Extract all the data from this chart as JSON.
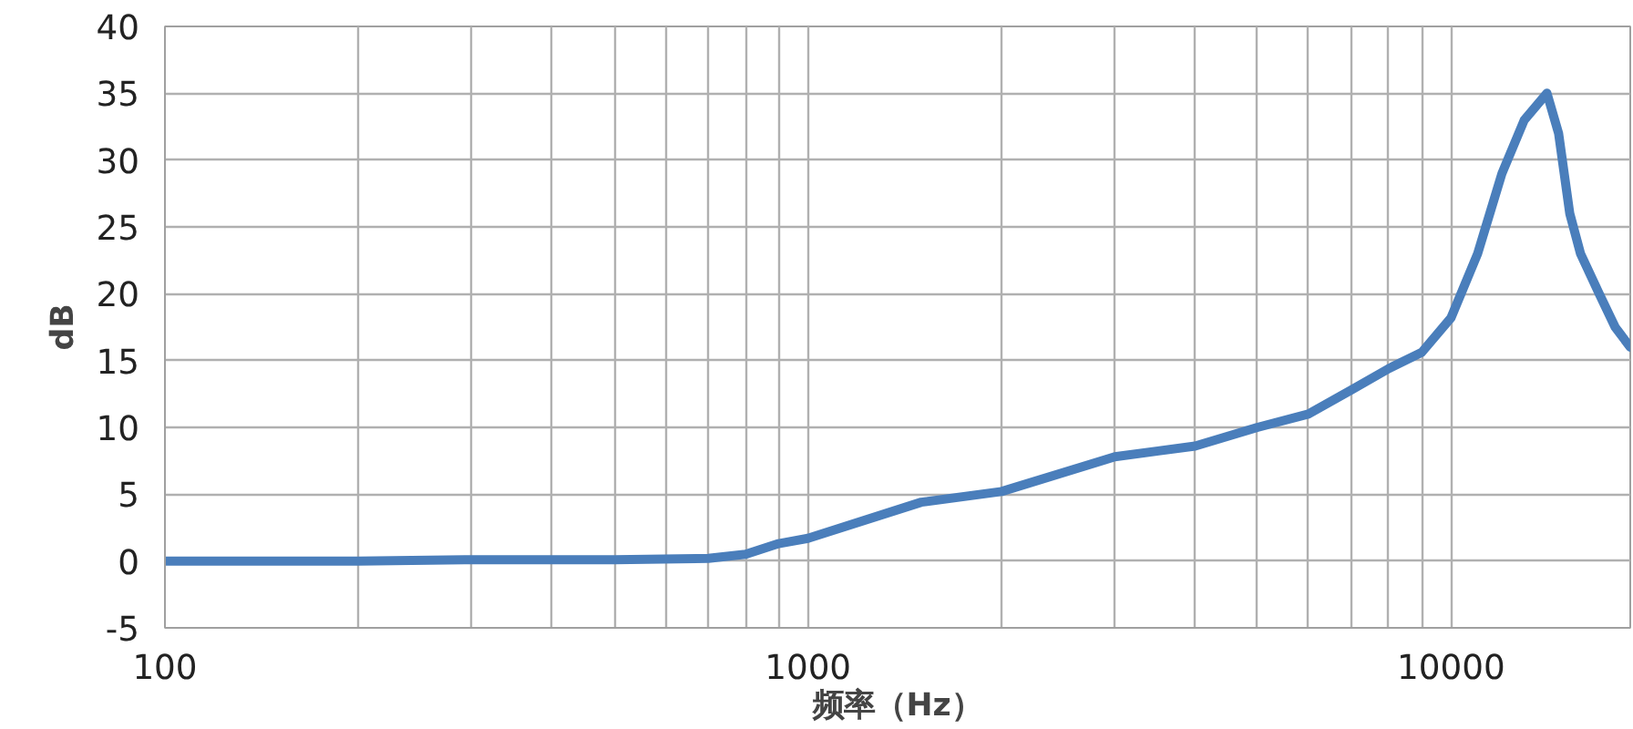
{
  "chart_data": {
    "type": "line",
    "xlabel": "频率（Hz）",
    "ylabel": "dB",
    "log": "x",
    "grid": true,
    "line_style": "solid",
    "x": [
      100,
      200,
      300,
      500,
      700,
      800,
      900,
      1000,
      1500,
      2000,
      3000,
      4000,
      5000,
      6000,
      7000,
      8000,
      9000,
      10000,
      11000,
      12000,
      13000,
      14100,
      14700,
      15300,
      15900,
      17000,
      18000,
      19000
    ],
    "series": [
      {
        "color": "#4a7ebb",
        "values": [
          0,
          0,
          0.1,
          0.1,
          0.2,
          0.5,
          1.3,
          1.7,
          4.4,
          5.2,
          7.8,
          8.6,
          10,
          11,
          12.8,
          14.4,
          15.6,
          18.2,
          23,
          29,
          33,
          35,
          32,
          26,
          23,
          20,
          17.5,
          16
        ]
      }
    ],
    "xlim": [
      100,
      19000
    ],
    "ylim": [
      -5,
      40
    ],
    "xticks": [
      100,
      {
        "value": 200,
        "label": null
      },
      {
        "value": 300,
        "label": null
      },
      {
        "value": 400,
        "label": null
      },
      {
        "value": 500,
        "label": null
      },
      {
        "value": 600,
        "label": null
      },
      {
        "value": 700,
        "label": null
      },
      {
        "value": 800,
        "label": null
      },
      {
        "value": 900,
        "label": null
      },
      1000,
      {
        "value": 2000,
        "label": null
      },
      {
        "value": 3000,
        "label": null
      },
      {
        "value": 4000,
        "label": null
      },
      {
        "value": 5000,
        "label": null
      },
      {
        "value": 6000,
        "label": null
      },
      {
        "value": 7000,
        "label": null
      },
      {
        "value": 8000,
        "label": null
      },
      {
        "value": 9000,
        "label": null
      },
      10000
    ],
    "yticks": [
      -5,
      0,
      5,
      10,
      15,
      20,
      25,
      30,
      35,
      40
    ]
  }
}
